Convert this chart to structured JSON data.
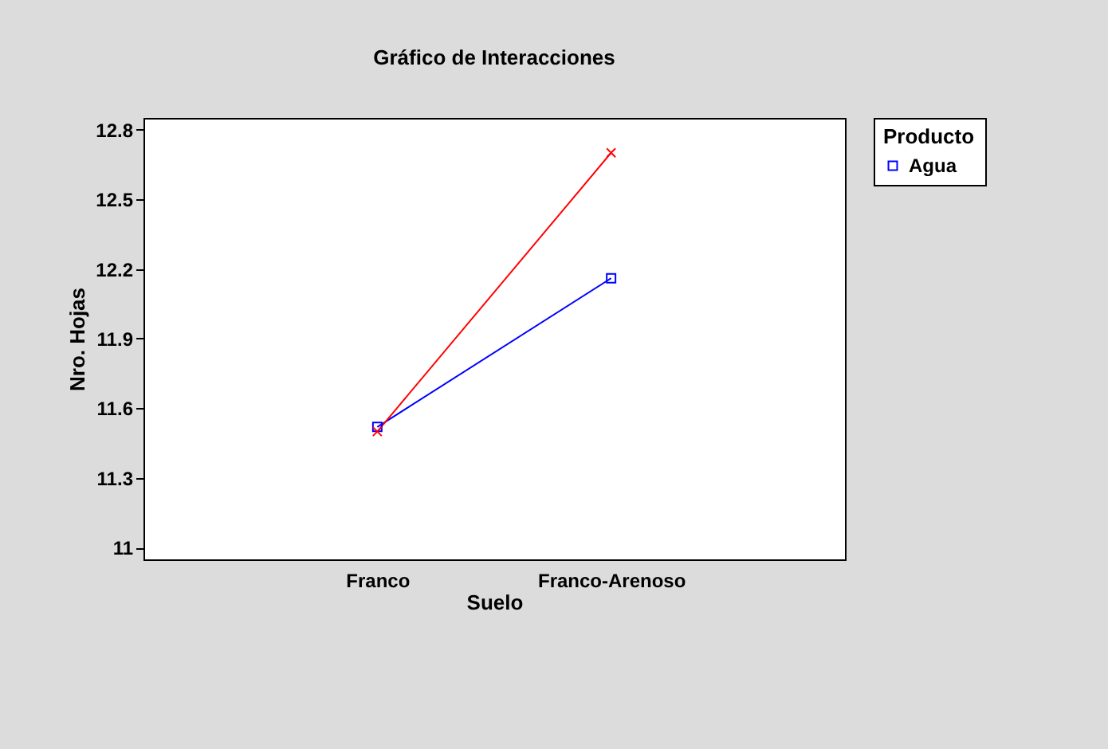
{
  "chart_data": {
    "type": "line",
    "title": "Gráfico de Interacciones",
    "xlabel": "Suelo",
    "ylabel": "Nro. Hojas",
    "legend_title": "Producto",
    "categories": [
      "Franco",
      "Franco-Arenoso"
    ],
    "series": [
      {
        "name": "Agua",
        "color": "#0000ff",
        "marker": "square",
        "values": [
          11.52,
          12.16
        ]
      },
      {
        "color": "#ff0000",
        "marker": "cross",
        "values": [
          11.5,
          12.7
        ]
      }
    ],
    "ylim": [
      10.95,
      12.85
    ],
    "yticks": [
      11,
      11.3,
      11.6,
      11.9,
      12.2,
      12.5,
      12.8
    ],
    "grid": false,
    "legend": "top right"
  }
}
